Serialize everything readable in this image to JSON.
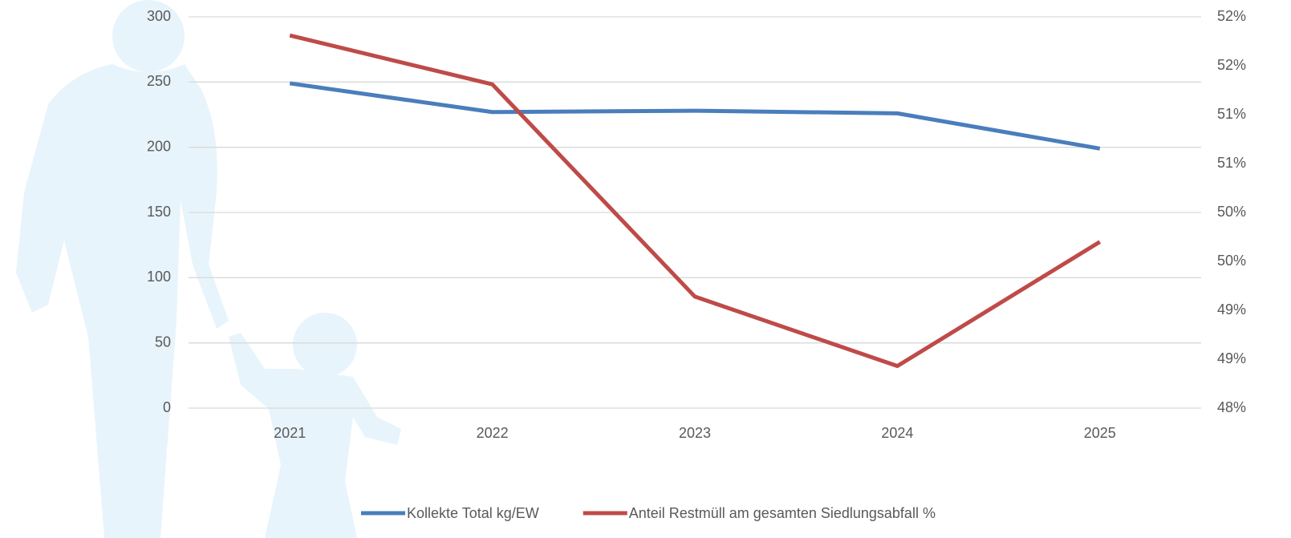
{
  "chart_data": {
    "type": "line",
    "categories": [
      "2021",
      "2022",
      "2023",
      "2024",
      "2025"
    ],
    "series": [
      {
        "name": "Kollekte Total kg/EW",
        "color": "#4a7ebb",
        "values": [
          249,
          227,
          228,
          226,
          199
        ]
      },
      {
        "name": "Anteil Restmüll am gesamten Siedlungsabfall %",
        "color": "#be4b48",
        "axis": "y2",
        "values": [
          51.81,
          51.31,
          49.14,
          48.43,
          49.7
        ]
      }
    ],
    "ylim": [
      0,
      300
    ],
    "yticks": [
      0,
      50,
      100,
      150,
      200,
      250,
      300
    ],
    "y2lim": [
      48,
      52
    ],
    "y2ticks": [
      {
        "value": 48,
        "label": "48%"
      },
      {
        "value": 48.5,
        "label": "49%"
      },
      {
        "value": 49,
        "label": "49%"
      },
      {
        "value": 49.5,
        "label": "50%"
      },
      {
        "value": 50,
        "label": "50%"
      },
      {
        "value": 50.5,
        "label": "51%"
      },
      {
        "value": 51,
        "label": "51%"
      },
      {
        "value": 51.5,
        "label": "52%"
      },
      {
        "value": 52,
        "label": "52%"
      }
    ],
    "grid": true,
    "legend": "bottom"
  }
}
